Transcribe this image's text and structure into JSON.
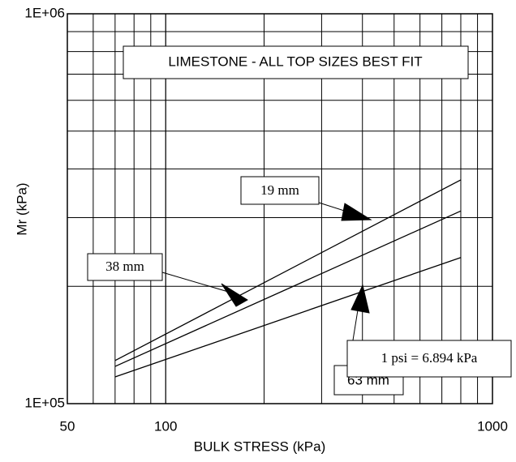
{
  "chart_data": {
    "type": "line",
    "title": "LIMESTONE - ALL TOP SIZES BEST FIT",
    "x_label": "BULK STRESS (kPa)",
    "y_label": "Mr (kPa)",
    "note": "1 psi = 6.894 kPa",
    "x": [
      70,
      800
    ],
    "series": [
      {
        "name": "19 mm",
        "color": "#000000",
        "values": [
          129000,
          375000
        ]
      },
      {
        "name": "38 mm",
        "color": "#000000",
        "values": [
          124600,
          312000
        ]
      },
      {
        "name": "63 mm",
        "color": "#000000",
        "values": [
          117100,
          237000
        ]
      }
    ],
    "xlim": [
      50,
      1000
    ],
    "xticks": [
      50,
      100,
      1000
    ],
    "ylim": [
      100000,
      1000000
    ],
    "yticks": [
      {
        "value": 100000,
        "label": "1E+05"
      },
      {
        "value": 1000000,
        "label": "1E+06"
      }
    ],
    "xlog": true,
    "ylog": true,
    "grid": true
  }
}
